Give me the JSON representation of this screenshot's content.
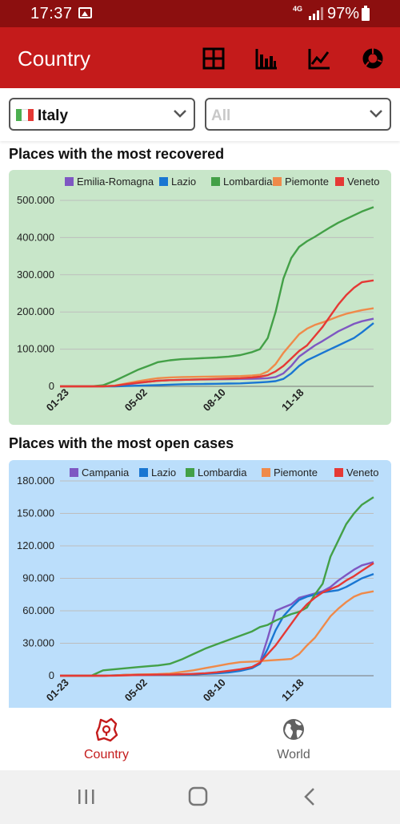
{
  "status": {
    "time": "17:37",
    "network": "4G",
    "battery": "97%"
  },
  "app": {
    "title": "Country",
    "brand_color": "#c41b1b"
  },
  "actions": [
    {
      "name": "table-view-icon"
    },
    {
      "name": "bar-chart-icon"
    },
    {
      "name": "line-chart-icon"
    },
    {
      "name": "donut-chart-icon"
    }
  ],
  "filters": {
    "country": {
      "value": "Italy",
      "flag_colors": [
        "#4caf50",
        "#ffffff",
        "#e53935"
      ]
    },
    "region": {
      "placeholder": "All"
    }
  },
  "charts": [
    {
      "section_title": "Places with the most recovered",
      "bg": "#c8e6c9",
      "chart_data": {
        "type": "line",
        "categories": [
          "01-23",
          "05-02",
          "08-10",
          "11-18"
        ],
        "ylim": [
          0,
          500000
        ],
        "yticks": [
          "500.000",
          "400.000",
          "300.000",
          "200.000",
          "100.000",
          "0"
        ],
        "legend_position": "top",
        "x": [
          0,
          25,
          40,
          55,
          70,
          85,
          100,
          115,
          125,
          140,
          155,
          170,
          185,
          200,
          215,
          230,
          245,
          255,
          265,
          275,
          285,
          295,
          305,
          315,
          325,
          335,
          345,
          355,
          365,
          375,
          385,
          400
        ],
        "series": [
          {
            "name": "Emilia-Romagna",
            "color": "#7e57c2",
            "values": [
              0,
              0,
              0,
              200,
              1500,
              5000,
              9000,
              13000,
              15000,
              16500,
              17500,
              18000,
              18500,
              19000,
              19500,
              20000,
              20500,
              21000,
              22000,
              25000,
              35000,
              55000,
              80000,
              95000,
              110000,
              122000,
              135000,
              148000,
              158000,
              168000,
              175000,
              182000
            ]
          },
          {
            "name": "Lazio",
            "color": "#1976d2",
            "values": [
              0,
              0,
              0,
              0,
              100,
              800,
              1800,
              2800,
              3500,
              4500,
              5500,
              6000,
              6500,
              7000,
              7500,
              8000,
              9500,
              10500,
              12000,
              14000,
              20000,
              35000,
              55000,
              70000,
              80000,
              90000,
              100000,
              110000,
              120000,
              130000,
              145000,
              170000
            ]
          },
          {
            "name": "Lombardia",
            "color": "#43a047",
            "values": [
              0,
              0,
              0,
              3000,
              15000,
              30000,
              45000,
              57000,
              65000,
              70000,
              73000,
              74500,
              76000,
              77500,
              80000,
              84000,
              92000,
              100000,
              130000,
              200000,
              290000,
              345000,
              375000,
              390000,
              402000,
              415000,
              428000,
              440000,
              450000,
              460000,
              470000,
              482000
            ]
          },
          {
            "name": "Piemonte",
            "color": "#ef8a4a",
            "values": [
              0,
              0,
              0,
              100,
              2000,
              8000,
              14000,
              19000,
              22000,
              24000,
              25000,
              25500,
              26000,
              26500,
              27000,
              27500,
              29000,
              31000,
              40000,
              60000,
              90000,
              115000,
              140000,
              155000,
              165000,
              172000,
              180000,
              188000,
              195000,
              200000,
              205000,
              210000
            ]
          },
          {
            "name": "Veneto",
            "color": "#e53935",
            "values": [
              0,
              0,
              0,
              100,
              1500,
              6000,
              10000,
              13000,
              15000,
              16500,
              17500,
              18000,
              19000,
              20000,
              21000,
              22000,
              24000,
              26000,
              30000,
              40000,
              55000,
              75000,
              95000,
              110000,
              135000,
              160000,
              190000,
              220000,
              245000,
              265000,
              280000,
              285000
            ]
          }
        ]
      }
    },
    {
      "section_title": "Places with the most open cases",
      "bg": "#bbdefb",
      "chart_data": {
        "type": "line",
        "categories": [
          "01-23",
          "05-02",
          "08-10",
          "11-18"
        ],
        "ylim": [
          0,
          180000
        ],
        "yticks": [
          "180.000",
          "150.000",
          "120.000",
          "90.000",
          "60.000",
          "30.000",
          "0"
        ],
        "legend_position": "top",
        "x": [
          0,
          25,
          40,
          55,
          70,
          85,
          100,
          115,
          125,
          140,
          155,
          170,
          185,
          200,
          215,
          230,
          245,
          255,
          265,
          275,
          285,
          295,
          305,
          315,
          325,
          335,
          345,
          355,
          365,
          375,
          385,
          400
        ],
        "series": [
          {
            "name": "Campania",
            "color": "#7e57c2",
            "values": [
              0,
              0,
              0,
              0,
              300,
              600,
              700,
              700,
              800,
              900,
              1000,
              1200,
              1800,
              2500,
              3500,
              5000,
              8000,
              12000,
              35000,
              60000,
              63000,
              66000,
              72000,
              74000,
              76000,
              78000,
              82000,
              88000,
              93000,
              98000,
              102000,
              105000
            ]
          },
          {
            "name": "Lazio",
            "color": "#1976d2",
            "values": [
              0,
              0,
              0,
              0,
              400,
              900,
              1100,
              1000,
              1000,
              1000,
              1100,
              1300,
              1700,
              2200,
              3000,
              4500,
              7000,
              11000,
              25000,
              42000,
              55000,
              63000,
              70000,
              73000,
              75000,
              77000,
              78000,
              79000,
              82000,
              86000,
              90000,
              94000
            ]
          },
          {
            "name": "Lombardia",
            "color": "#43a047",
            "values": [
              0,
              0,
              0,
              5000,
              6000,
              7000,
              8000,
              9000,
              9500,
              11000,
              15000,
              20000,
              25000,
              29000,
              33000,
              37000,
              41000,
              45000,
              47000,
              51000,
              54000,
              57000,
              59000,
              63000,
              75000,
              85000,
              110000,
              125000,
              140000,
              150000,
              158000,
              165000
            ]
          },
          {
            "name": "Piemonte",
            "color": "#ef8a4a",
            "values": [
              0,
              0,
              0,
              0,
              300,
              900,
              1200,
              1300,
              1500,
              2000,
              3500,
              5000,
              7000,
              9000,
              11000,
              12500,
              13000,
              13500,
              14000,
              14500,
              15000,
              15500,
              20000,
              28000,
              35000,
              45000,
              55000,
              62000,
              68000,
              73000,
              76000,
              78000
            ]
          },
          {
            "name": "Veneto",
            "color": "#e53935",
            "values": [
              0,
              0,
              0,
              0,
              100,
              400,
              700,
              900,
              1000,
              1000,
              1300,
              1700,
              2300,
              3200,
              4500,
              6000,
              8000,
              12000,
              20000,
              28000,
              38000,
              48000,
              58000,
              66000,
              72000,
              77000,
              80000,
              83000,
              88000,
              92000,
              97000,
              104000
            ]
          }
        ]
      }
    }
  ],
  "bottom_nav": [
    {
      "label": "Country",
      "active": true,
      "color": "#c41b1b"
    },
    {
      "label": "World",
      "active": false,
      "color": "#616161"
    }
  ]
}
